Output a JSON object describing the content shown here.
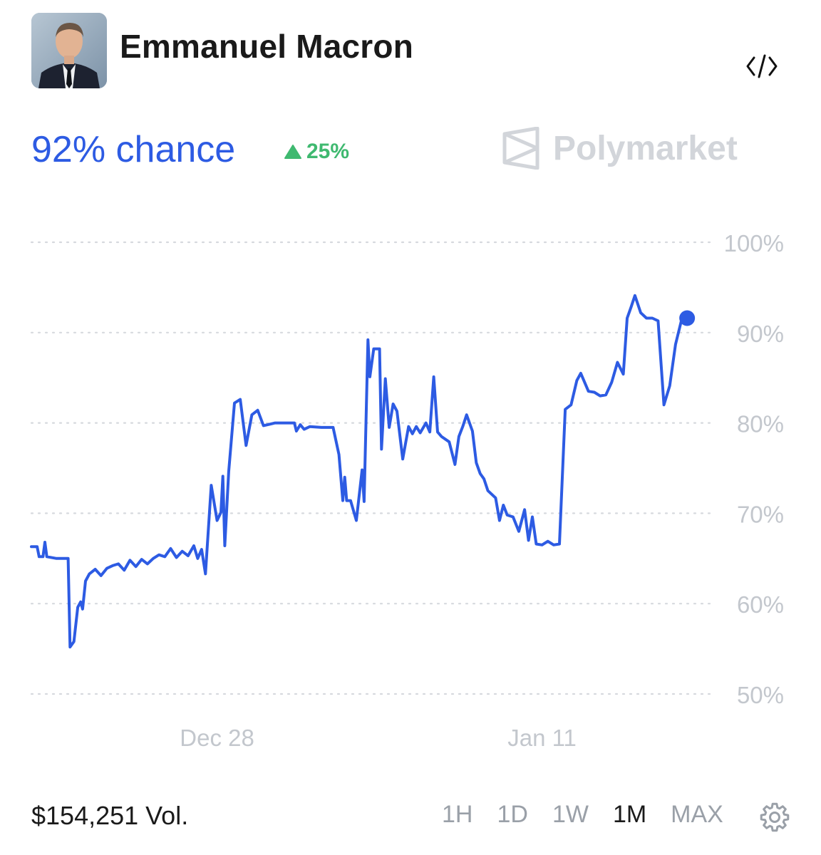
{
  "header": {
    "title": "Emmanuel Macron",
    "avatar": "portrait-photo",
    "embed_icon": "code-icon"
  },
  "summary": {
    "chance_text": "92% chance",
    "change_text": "25%",
    "change_direction": "up",
    "change_color": "#3fb970",
    "accent_color": "#2d5be3"
  },
  "brand": {
    "name": "Polymarket",
    "icon": "polymarket-logo-icon"
  },
  "footer": {
    "volume_text": "$154,251 Vol.",
    "ranges": [
      "1H",
      "1D",
      "1W",
      "1M",
      "MAX"
    ],
    "selected_range": "1M",
    "settings_icon": "gear-icon"
  },
  "chart_data": {
    "type": "line",
    "title": "",
    "xlabel": "",
    "ylabel": "",
    "ylim": [
      50,
      100
    ],
    "yticks": [
      50,
      60,
      70,
      80,
      90,
      100
    ],
    "ytick_labels": [
      "50%",
      "60%",
      "70%",
      "80%",
      "90%",
      "100%"
    ],
    "xlim": [
      "2023-12-20",
      "2024-01-17"
    ],
    "xticks": [
      {
        "date": "2023-12-28",
        "label": "Dec 28"
      },
      {
        "date": "2024-01-11",
        "label": "Jan 11"
      }
    ],
    "grid": true,
    "series": [
      {
        "color": "#2d5be3",
        "points": [
          [
            "2023-12-20 00:00",
            66.3
          ],
          [
            "2023-12-20 06:00",
            66.3
          ],
          [
            "2023-12-20 08:00",
            65.2
          ],
          [
            "2023-12-20 12:00",
            65.2
          ],
          [
            "2023-12-20 14:00",
            66.8
          ],
          [
            "2023-12-20 16:00",
            65.2
          ],
          [
            "2023-12-21 02:00",
            65.0
          ],
          [
            "2023-12-21 14:00",
            65.0
          ],
          [
            "2023-12-21 16:00",
            55.2
          ],
          [
            "2023-12-21 20:00",
            55.8
          ],
          [
            "2023-12-22 00:00",
            59.6
          ],
          [
            "2023-12-22 03:00",
            60.2
          ],
          [
            "2023-12-22 05:00",
            59.4
          ],
          [
            "2023-12-22 08:00",
            62.5
          ],
          [
            "2023-12-22 12:00",
            63.3
          ],
          [
            "2023-12-22 18:00",
            63.8
          ],
          [
            "2023-12-23 00:00",
            63.1
          ],
          [
            "2023-12-23 06:00",
            63.9
          ],
          [
            "2023-12-23 12:00",
            64.2
          ],
          [
            "2023-12-23 18:00",
            64.4
          ],
          [
            "2023-12-24 00:00",
            63.7
          ],
          [
            "2023-12-24 06:00",
            64.8
          ],
          [
            "2023-12-24 12:00",
            64.1
          ],
          [
            "2023-12-24 18:00",
            64.9
          ],
          [
            "2023-12-25 00:00",
            64.4
          ],
          [
            "2023-12-25 06:00",
            65.0
          ],
          [
            "2023-12-25 12:00",
            65.4
          ],
          [
            "2023-12-25 18:00",
            65.2
          ],
          [
            "2023-12-26 00:00",
            66.1
          ],
          [
            "2023-12-26 06:00",
            65.1
          ],
          [
            "2023-12-26 12:00",
            65.8
          ],
          [
            "2023-12-26 18:00",
            65.3
          ],
          [
            "2023-12-27 00:00",
            66.4
          ],
          [
            "2023-12-27 04:00",
            65.0
          ],
          [
            "2023-12-27 08:00",
            66.0
          ],
          [
            "2023-12-27 12:00",
            63.3
          ],
          [
            "2023-12-27 18:00",
            73.1
          ],
          [
            "2023-12-28 00:00",
            69.2
          ],
          [
            "2023-12-28 04:00",
            70.1
          ],
          [
            "2023-12-28 06:00",
            74.1
          ],
          [
            "2023-12-28 08:00",
            66.4
          ],
          [
            "2023-12-28 12:00",
            74.6
          ],
          [
            "2023-12-28 18:00",
            82.2
          ],
          [
            "2023-12-29 00:00",
            82.6
          ],
          [
            "2023-12-29 06:00",
            77.5
          ],
          [
            "2023-12-29 12:00",
            80.9
          ],
          [
            "2023-12-29 18:00",
            81.4
          ],
          [
            "2023-12-30 00:00",
            79.7
          ],
          [
            "2023-12-30 12:00",
            80.0
          ],
          [
            "2023-12-31 00:00",
            80.0
          ],
          [
            "2023-12-31 08:00",
            80.0
          ],
          [
            "2023-12-31 10:00",
            79.1
          ],
          [
            "2023-12-31 14:00",
            79.8
          ],
          [
            "2023-12-31 18:00",
            79.3
          ],
          [
            "2024-01-01 00:00",
            79.6
          ],
          [
            "2024-01-01 12:00",
            79.5
          ],
          [
            "2024-01-02 00:00",
            79.5
          ],
          [
            "2024-01-02 06:00",
            76.5
          ],
          [
            "2024-01-02 10:00",
            71.4
          ],
          [
            "2024-01-02 12:00",
            74.0
          ],
          [
            "2024-01-02 14:00",
            71.4
          ],
          [
            "2024-01-02 18:00",
            71.4
          ],
          [
            "2024-01-03 00:00",
            69.2
          ],
          [
            "2024-01-03 06:00",
            74.8
          ],
          [
            "2024-01-03 08:00",
            71.3
          ],
          [
            "2024-01-03 12:00",
            89.2
          ],
          [
            "2024-01-03 14:00",
            85.1
          ],
          [
            "2024-01-03 18:00",
            88.2
          ],
          [
            "2024-01-04 00:00",
            88.2
          ],
          [
            "2024-01-04 02:00",
            77.1
          ],
          [
            "2024-01-04 06:00",
            84.9
          ],
          [
            "2024-01-04 10:00",
            79.5
          ],
          [
            "2024-01-04 14:00",
            82.1
          ],
          [
            "2024-01-04 18:00",
            81.3
          ],
          [
            "2024-01-05 00:00",
            76.0
          ],
          [
            "2024-01-05 06:00",
            79.6
          ],
          [
            "2024-01-05 10:00",
            78.8
          ],
          [
            "2024-01-05 14:00",
            79.6
          ],
          [
            "2024-01-05 18:00",
            78.9
          ],
          [
            "2024-01-06 00:00",
            80.0
          ],
          [
            "2024-01-06 04:00",
            79.0
          ],
          [
            "2024-01-06 08:00",
            85.1
          ],
          [
            "2024-01-06 12:00",
            79.0
          ],
          [
            "2024-01-06 16:00",
            78.5
          ],
          [
            "2024-01-07 00:00",
            77.9
          ],
          [
            "2024-01-07 06:00",
            75.4
          ],
          [
            "2024-01-07 10:00",
            78.5
          ],
          [
            "2024-01-07 14:00",
            79.6
          ],
          [
            "2024-01-07 18:00",
            80.9
          ],
          [
            "2024-01-08 00:00",
            79.1
          ],
          [
            "2024-01-08 04:00",
            75.6
          ],
          [
            "2024-01-08 08:00",
            74.4
          ],
          [
            "2024-01-08 12:00",
            73.8
          ],
          [
            "2024-01-08 16:00",
            72.5
          ],
          [
            "2024-01-09 00:00",
            71.7
          ],
          [
            "2024-01-09 04:00",
            69.2
          ],
          [
            "2024-01-09 08:00",
            70.9
          ],
          [
            "2024-01-09 12:00",
            69.8
          ],
          [
            "2024-01-09 18:00",
            69.6
          ],
          [
            "2024-01-10 00:00",
            68.0
          ],
          [
            "2024-01-10 06:00",
            70.4
          ],
          [
            "2024-01-10 10:00",
            67.0
          ],
          [
            "2024-01-10 14:00",
            69.6
          ],
          [
            "2024-01-10 18:00",
            66.6
          ],
          [
            "2024-01-11 00:00",
            66.5
          ],
          [
            "2024-01-11 06:00",
            66.9
          ],
          [
            "2024-01-11 12:00",
            66.5
          ],
          [
            "2024-01-11 18:00",
            66.6
          ],
          [
            "2024-01-12 00:00",
            81.5
          ],
          [
            "2024-01-12 06:00",
            82.0
          ],
          [
            "2024-01-12 12:00",
            84.7
          ],
          [
            "2024-01-12 16:00",
            85.5
          ],
          [
            "2024-01-13 00:00",
            83.5
          ],
          [
            "2024-01-13 06:00",
            83.4
          ],
          [
            "2024-01-13 12:00",
            83.0
          ],
          [
            "2024-01-13 18:00",
            83.1
          ],
          [
            "2024-01-14 00:00",
            84.5
          ],
          [
            "2024-01-14 06:00",
            86.7
          ],
          [
            "2024-01-14 12:00",
            85.4
          ],
          [
            "2024-01-14 16:00",
            91.6
          ],
          [
            "2024-01-14 20:00",
            92.8
          ],
          [
            "2024-01-15 00:00",
            94.1
          ],
          [
            "2024-01-15 06:00",
            92.2
          ],
          [
            "2024-01-15 12:00",
            91.6
          ],
          [
            "2024-01-15 18:00",
            91.6
          ],
          [
            "2024-01-16 00:00",
            91.3
          ],
          [
            "2024-01-16 06:00",
            82.0
          ],
          [
            "2024-01-16 12:00",
            84.1
          ],
          [
            "2024-01-16 18:00",
            88.7
          ],
          [
            "2024-01-17 00:00",
            91.3
          ],
          [
            "2024-01-17 06:00",
            91.6
          ]
        ]
      }
    ]
  }
}
